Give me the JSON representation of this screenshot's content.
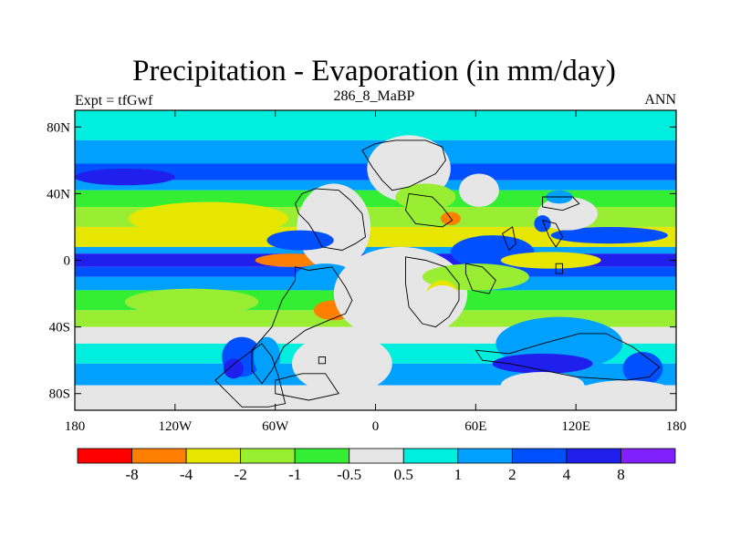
{
  "chart_data": {
    "type": "heatmap",
    "title": "Precipitation - Evaporation (in mm/day)",
    "subtitle_left": "Expt = tfGwf",
    "subtitle_center": "286_8_MaBP",
    "subtitle_right": "ANN",
    "xlim": [
      -180,
      180
    ],
    "ylim": [
      -90,
      90
    ],
    "x_ticks": [
      {
        "value": -180,
        "label": "180"
      },
      {
        "value": -120,
        "label": "120W"
      },
      {
        "value": -60,
        "label": "60W"
      },
      {
        "value": 0,
        "label": "0"
      },
      {
        "value": 60,
        "label": "60E"
      },
      {
        "value": 120,
        "label": "120E"
      },
      {
        "value": 180,
        "label": "180"
      }
    ],
    "y_ticks": [
      {
        "value": 80,
        "label": "80N"
      },
      {
        "value": 40,
        "label": "40N"
      },
      {
        "value": 0,
        "label": "0"
      },
      {
        "value": -40,
        "label": "40S"
      },
      {
        "value": -80,
        "label": "80S"
      }
    ],
    "colorbar": {
      "colors": [
        "#ff0000",
        "#ff8000",
        "#e6e600",
        "#99ee33",
        "#33ee33",
        "#e6e6e6",
        "#00eedd",
        "#00a0ff",
        "#0050ff",
        "#2020ee",
        "#8020ff"
      ],
      "labels": [
        "-8",
        "-4",
        "-2",
        "-1",
        "-0.5",
        "0.5",
        "1",
        "2",
        "4",
        "8"
      ]
    },
    "zonal_bands": [
      {
        "lat_min": 72,
        "lat_max": 90,
        "value": 0.7
      },
      {
        "lat_min": 58,
        "lat_max": 72,
        "value": 1.5
      },
      {
        "lat_min": 48,
        "lat_max": 58,
        "value": 3
      },
      {
        "lat_min": 42,
        "lat_max": 48,
        "value": 1.5
      },
      {
        "lat_min": 32,
        "lat_max": 42,
        "value": -0.7
      },
      {
        "lat_min": 20,
        "lat_max": 32,
        "value": -1.5
      },
      {
        "lat_min": 8,
        "lat_max": 20,
        "value": -3
      },
      {
        "lat_min": 4,
        "lat_max": 8,
        "value": 1.5
      },
      {
        "lat_min": -4,
        "lat_max": 4,
        "value": 5
      },
      {
        "lat_min": -10,
        "lat_max": -4,
        "value": 3
      },
      {
        "lat_min": -18,
        "lat_max": -10,
        "value": 1.5
      },
      {
        "lat_min": -30,
        "lat_max": -18,
        "value": -0.7
      },
      {
        "lat_min": -40,
        "lat_max": -30,
        "value": -1.5
      },
      {
        "lat_min": -50,
        "lat_max": -40,
        "value": 0
      },
      {
        "lat_min": -62,
        "lat_max": -50,
        "value": 0.7
      },
      {
        "lat_min": -75,
        "lat_max": -62,
        "value": 1.5
      },
      {
        "lat_min": -90,
        "lat_max": -75,
        "value": 0
      }
    ],
    "features": [
      {
        "lon": -105,
        "lat": 28,
        "rx": 35,
        "ry": 6,
        "value": -5
      },
      {
        "lon": -100,
        "lat": 25,
        "rx": 48,
        "ry": 10,
        "value": -3
      },
      {
        "lon": -150,
        "lat": 50,
        "rx": 30,
        "ry": 5,
        "value": 4
      },
      {
        "lon": -50,
        "lat": 0,
        "rx": 22,
        "ry": 4,
        "value": -5
      },
      {
        "lon": -110,
        "lat": -25,
        "rx": 40,
        "ry": 8,
        "value": -1.5
      },
      {
        "lon": -25,
        "lat": 20,
        "rx": 22,
        "ry": 26,
        "value": 0
      },
      {
        "lon": -30,
        "lat": -10,
        "rx": 18,
        "ry": 8,
        "value": 1.5
      },
      {
        "lon": -45,
        "lat": 12,
        "rx": 20,
        "ry": 6,
        "value": 3
      },
      {
        "lon": -80,
        "lat": -58,
        "rx": 12,
        "ry": 12,
        "value": 3
      },
      {
        "lon": -85,
        "lat": -65,
        "rx": 6,
        "ry": 6,
        "value": 6
      },
      {
        "lon": -65,
        "lat": -58,
        "rx": 8,
        "ry": 12,
        "value": 1.5
      },
      {
        "lon": -25,
        "lat": -30,
        "rx": 12,
        "ry": 6,
        "value": -5
      },
      {
        "lon": 15,
        "lat": -20,
        "rx": 40,
        "ry": 28,
        "value": 0
      },
      {
        "lon": -20,
        "lat": -62,
        "rx": 30,
        "ry": 18,
        "value": 0
      },
      {
        "lon": 20,
        "lat": 55,
        "rx": 25,
        "ry": 20,
        "value": 0
      },
      {
        "lon": 30,
        "lat": 38,
        "rx": 18,
        "ry": 8,
        "value": -1.5
      },
      {
        "lon": 45,
        "lat": 25,
        "rx": 6,
        "ry": 4,
        "value": -5
      },
      {
        "lon": 62,
        "lat": 42,
        "rx": 12,
        "ry": 10,
        "value": 0
      },
      {
        "lon": 70,
        "lat": 5,
        "rx": 25,
        "ry": 10,
        "value": 3
      },
      {
        "lon": 60,
        "lat": -10,
        "rx": 32,
        "ry": 8,
        "value": -1.5
      },
      {
        "lon": 40,
        "lat": -22,
        "rx": 10,
        "ry": 10,
        "value": -3
      },
      {
        "lon": 40,
        "lat": -25,
        "rx": 12,
        "ry": 10,
        "value": 0
      },
      {
        "lon": 105,
        "lat": 0,
        "rx": 30,
        "ry": 5,
        "value": -4
      },
      {
        "lon": 140,
        "lat": 15,
        "rx": 35,
        "ry": 5,
        "value": 3
      },
      {
        "lon": 115,
        "lat": 28,
        "rx": 18,
        "ry": 10,
        "value": 0
      },
      {
        "lon": 100,
        "lat": 22,
        "rx": 5,
        "ry": 5,
        "value": 2
      },
      {
        "lon": 110,
        "lat": 38,
        "rx": 8,
        "ry": 4,
        "value": 1.5
      },
      {
        "lon": 110,
        "lat": -50,
        "rx": 38,
        "ry": 16,
        "value": 1.5
      },
      {
        "lon": 100,
        "lat": -62,
        "rx": 30,
        "ry": 6,
        "value": 4
      },
      {
        "lon": 160,
        "lat": -65,
        "rx": 12,
        "ry": 10,
        "value": 3
      },
      {
        "lon": 100,
        "lat": -75,
        "rx": 25,
        "ry": 8,
        "value": 0
      },
      {
        "lon": 150,
        "lat": -80,
        "rx": 30,
        "ry": 8,
        "value": 0
      }
    ]
  },
  "coastline_polygons": [
    [
      [
        -44,
        40
      ],
      [
        -36,
        43
      ],
      [
        -22,
        42
      ],
      [
        -15,
        36
      ],
      [
        -8,
        28
      ],
      [
        -6,
        14
      ],
      [
        -12,
        10
      ],
      [
        -20,
        6
      ],
      [
        -32,
        8
      ],
      [
        -35,
        14
      ],
      [
        -40,
        22
      ],
      [
        -46,
        28
      ],
      [
        -48,
        34
      ],
      [
        -44,
        40
      ]
    ],
    [
      [
        -48,
        -4
      ],
      [
        -40,
        -6
      ],
      [
        -26,
        -4
      ],
      [
        -18,
        -16
      ],
      [
        -14,
        -24
      ],
      [
        -18,
        -32
      ],
      [
        -28,
        -36
      ],
      [
        -42,
        -42
      ],
      [
        -55,
        -52
      ],
      [
        -62,
        -66
      ],
      [
        -68,
        -74
      ],
      [
        -74,
        -66
      ],
      [
        -74,
        -54
      ],
      [
        -62,
        -40
      ],
      [
        -56,
        -24
      ],
      [
        -48,
        -12
      ],
      [
        -48,
        -4
      ]
    ],
    [
      [
        -8,
        66
      ],
      [
        0,
        70
      ],
      [
        12,
        72
      ],
      [
        30,
        72
      ],
      [
        40,
        68
      ],
      [
        42,
        60
      ],
      [
        36,
        52
      ],
      [
        28,
        48
      ],
      [
        20,
        44
      ],
      [
        10,
        42
      ],
      [
        4,
        48
      ],
      [
        -2,
        56
      ],
      [
        -8,
        66
      ]
    ],
    [
      [
        20,
        40
      ],
      [
        34,
        38
      ],
      [
        40,
        32
      ],
      [
        46,
        24
      ],
      [
        40,
        20
      ],
      [
        24,
        22
      ],
      [
        18,
        30
      ],
      [
        20,
        40
      ]
    ],
    [
      [
        18,
        2
      ],
      [
        30,
        0
      ],
      [
        42,
        -4
      ],
      [
        50,
        -14
      ],
      [
        50,
        -24
      ],
      [
        44,
        -34
      ],
      [
        36,
        -40
      ],
      [
        28,
        -38
      ],
      [
        20,
        -28
      ],
      [
        18,
        -14
      ],
      [
        18,
        2
      ]
    ],
    [
      [
        54,
        -2
      ],
      [
        64,
        -4
      ],
      [
        72,
        -12
      ],
      [
        68,
        -20
      ],
      [
        58,
        -18
      ],
      [
        54,
        -8
      ],
      [
        54,
        -2
      ]
    ],
    [
      [
        76,
        16
      ],
      [
        82,
        20
      ],
      [
        84,
        10
      ],
      [
        80,
        6
      ],
      [
        76,
        16
      ]
    ],
    [
      [
        100,
        38
      ],
      [
        118,
        38
      ],
      [
        122,
        34
      ],
      [
        112,
        30
      ],
      [
        100,
        32
      ],
      [
        100,
        38
      ]
    ],
    [
      [
        100,
        24
      ],
      [
        108,
        22
      ],
      [
        112,
        14
      ],
      [
        108,
        8
      ],
      [
        104,
        14
      ],
      [
        100,
        24
      ]
    ],
    [
      [
        108,
        -2
      ],
      [
        112,
        -2
      ],
      [
        112,
        -8
      ],
      [
        108,
        -8
      ],
      [
        108,
        -2
      ]
    ],
    [
      [
        60,
        -54
      ],
      [
        80,
        -56
      ],
      [
        100,
        -50
      ],
      [
        122,
        -44
      ],
      [
        138,
        -44
      ],
      [
        154,
        -52
      ],
      [
        170,
        -64
      ],
      [
        164,
        -70
      ],
      [
        150,
        -72
      ],
      [
        120,
        -70
      ],
      [
        100,
        -66
      ],
      [
        80,
        -62
      ],
      [
        64,
        -60
      ],
      [
        60,
        -54
      ]
    ],
    [
      [
        -96,
        -72
      ],
      [
        -82,
        -60
      ],
      [
        -68,
        -50
      ],
      [
        -62,
        -58
      ],
      [
        -58,
        -70
      ],
      [
        -54,
        -86
      ],
      [
        -64,
        -88
      ],
      [
        -80,
        -88
      ],
      [
        -96,
        -72
      ]
    ],
    [
      [
        -60,
        -72
      ],
      [
        -44,
        -68
      ],
      [
        -30,
        -68
      ],
      [
        -22,
        -80
      ],
      [
        -40,
        -84
      ],
      [
        -60,
        -80
      ],
      [
        -60,
        -72
      ]
    ],
    [
      [
        -34,
        -58
      ],
      [
        -30,
        -58
      ],
      [
        -30,
        -62
      ],
      [
        -34,
        -62
      ],
      [
        -34,
        -58
      ]
    ]
  ]
}
